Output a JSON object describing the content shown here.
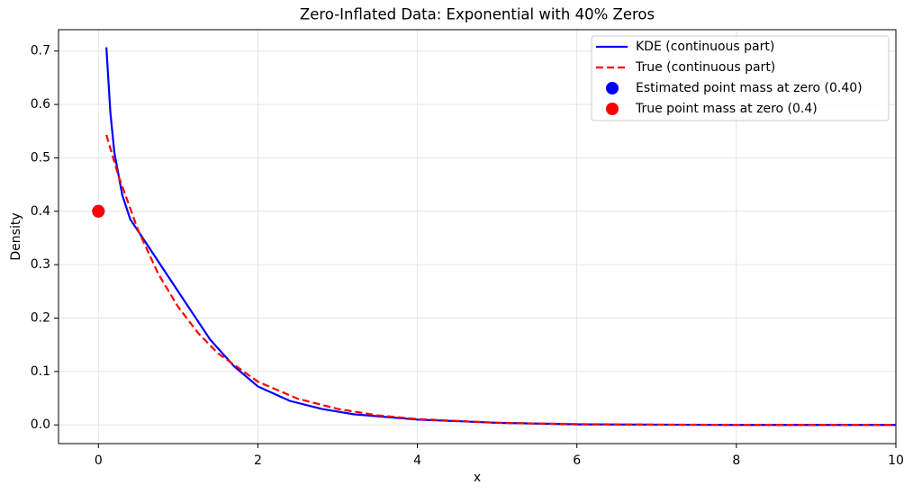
{
  "chart_data": {
    "type": "line",
    "title": "Zero-Inflated Data: Exponential with 40% Zeros",
    "xlabel": "x",
    "ylabel": "Density",
    "xlim": [
      -0.5,
      10
    ],
    "ylim": [
      -0.035,
      0.74
    ],
    "xticks": [
      0,
      2,
      4,
      6,
      8,
      10
    ],
    "yticks": [
      {
        "value": 0,
        "label": "0.0"
      },
      0.1,
      0.2,
      0.3,
      0.4,
      0.5,
      0.6,
      0.7
    ],
    "grid": true,
    "legend": "upper right",
    "series": [
      {
        "name": "KDE (continuous part)",
        "kind": "line",
        "style": "solid",
        "color": "#0000ff",
        "x": [
          0.1,
          0.15,
          0.2,
          0.3,
          0.4,
          0.6,
          0.8,
          1.0,
          1.2,
          1.4,
          1.7,
          2.0,
          2.4,
          2.8,
          3.2,
          4,
          5,
          6,
          8,
          10
        ],
        "values": [
          0.707,
          0.585,
          0.51,
          0.43,
          0.385,
          0.34,
          0.295,
          0.25,
          0.205,
          0.16,
          0.11,
          0.072,
          0.045,
          0.03,
          0.02,
          0.01,
          0.004,
          0.001,
          0,
          0
        ]
      },
      {
        "name": "True (continuous part)",
        "kind": "line",
        "style": "dashed",
        "color": "#ff0000",
        "x": [
          0.1,
          0.25,
          0.5,
          0.75,
          1,
          1.25,
          1.5,
          2,
          2.5,
          3,
          3.5,
          4,
          5,
          6,
          7,
          8,
          9,
          10
        ],
        "values": [
          0.543,
          0.467,
          0.364,
          0.283,
          0.221,
          0.172,
          0.134,
          0.081,
          0.049,
          0.03,
          0.018,
          0.011,
          0.004,
          0.0015,
          0.0005,
          0.0002,
          0.0001,
          0
        ]
      },
      {
        "name": "Estimated point mass at zero (0.40)",
        "kind": "point",
        "color": "#0000ff",
        "x": [
          0
        ],
        "values": [
          0.4
        ]
      },
      {
        "name": "True point mass at zero (0.4)",
        "kind": "point",
        "color": "#ff0000",
        "x": [
          0
        ],
        "values": [
          0.4
        ]
      }
    ]
  }
}
